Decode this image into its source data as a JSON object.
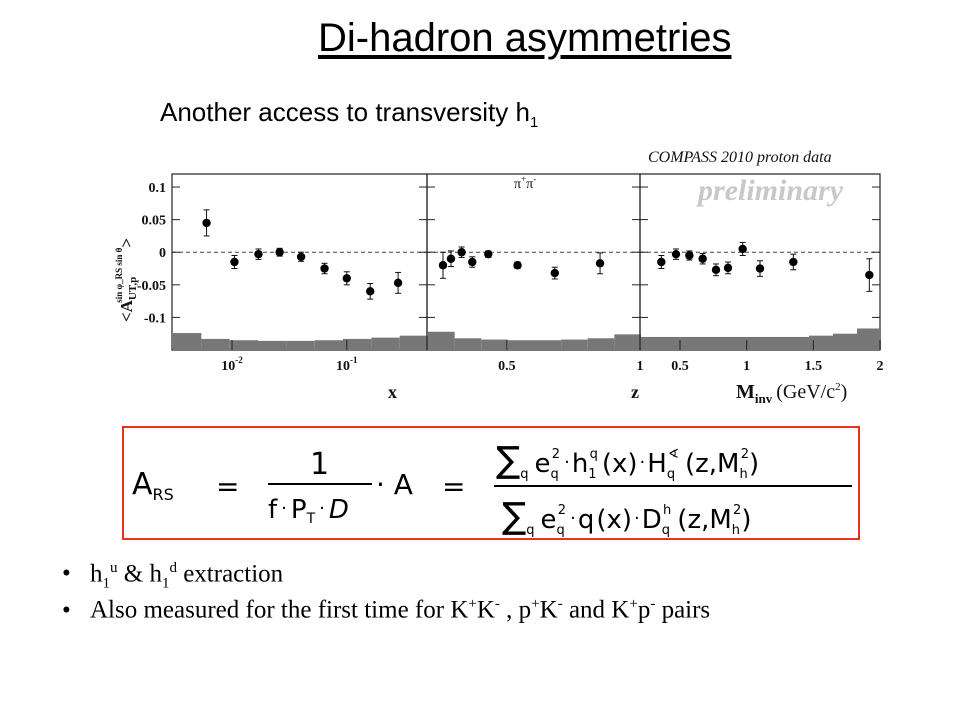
{
  "title": "Di-hadron asymmetries",
  "subtitle_main": "Another access to transversity h",
  "subtitle_sub": "1",
  "figure": {
    "header": "COMPASS 2010 proton data",
    "watermark": "preliminary",
    "ylabel": "<A",
    "ylabel_sub": "UT,p",
    "ylabel_sup": "sin φ_RS sin θ",
    "ylabel_tail": ">",
    "panel2_label_main": "π",
    "panel2_label_sup": "+",
    "panel2_label_main2": "π",
    "panel2_label_sup2": "-",
    "xlabel_1": "x",
    "xlabel_2": "z",
    "xlabel_3_main": "M",
    "xlabel_3_sub": "inv",
    "xlabel_3_units": "(GeV/c",
    "xlabel_3_units_sup": "2",
    "xlabel_3_units_tail": ")"
  },
  "chart_data": [
    {
      "type": "scatter",
      "panel": "x",
      "log_x": true,
      "xlim": [
        0.003,
        0.5
      ],
      "ylim": [
        -0.15,
        0.12
      ],
      "yticks": [
        "0.1",
        "0.05",
        "0",
        "-0.05",
        "-0.1"
      ],
      "ytick_values": [
        0.1,
        0.05,
        0,
        -0.05,
        -0.1
      ],
      "xticks": [
        "10",
        "10"
      ],
      "xtick_sups": [
        "-2",
        "-1"
      ],
      "xtick_values": [
        0.01,
        0.1
      ],
      "points": [
        {
          "x": 0.006,
          "y": 0.045,
          "err": 0.02
        },
        {
          "x": 0.0105,
          "y": -0.015,
          "err": 0.01
        },
        {
          "x": 0.017,
          "y": -0.003,
          "err": 0.008
        },
        {
          "x": 0.026,
          "y": 0.0,
          "err": 0.006
        },
        {
          "x": 0.04,
          "y": -0.007,
          "err": 0.007
        },
        {
          "x": 0.064,
          "y": -0.025,
          "err": 0.008
        },
        {
          "x": 0.1,
          "y": -0.04,
          "err": 0.01
        },
        {
          "x": 0.16,
          "y": -0.06,
          "err": 0.012
        },
        {
          "x": 0.28,
          "y": -0.047,
          "err": 0.016
        }
      ],
      "systematics": [
        -0.124,
        -0.133,
        -0.135,
        -0.136,
        -0.136,
        -0.135,
        -0.133,
        -0.131,
        -0.128
      ]
    },
    {
      "type": "scatter",
      "panel": "z",
      "xlim": [
        0.2,
        1.0
      ],
      "ylim": [
        -0.15,
        0.12
      ],
      "xticks": [
        "0.5",
        "1"
      ],
      "xtick_values": [
        0.5,
        1.0
      ],
      "points": [
        {
          "x": 0.26,
          "y": -0.02,
          "err": 0.02
        },
        {
          "x": 0.29,
          "y": -0.01,
          "err": 0.012
        },
        {
          "x": 0.33,
          "y": 0.0,
          "err": 0.008
        },
        {
          "x": 0.37,
          "y": -0.015,
          "err": 0.008
        },
        {
          "x": 0.43,
          "y": -0.003,
          "err": 0.005
        },
        {
          "x": 0.54,
          "y": -0.02,
          "err": 0.005
        },
        {
          "x": 0.68,
          "y": -0.032,
          "err": 0.009
        },
        {
          "x": 0.85,
          "y": -0.017,
          "err": 0.016
        }
      ],
      "systematics": [
        -0.122,
        -0.132,
        -0.134,
        -0.135,
        -0.135,
        -0.134,
        -0.132,
        -0.126
      ]
    },
    {
      "type": "scatter",
      "panel": "M_inv",
      "xlim": [
        0.2,
        2.0
      ],
      "ylim": [
        -0.15,
        0.12
      ],
      "xticks": [
        "0.5",
        "1",
        "1.5",
        "2"
      ],
      "xtick_values": [
        0.5,
        1.0,
        1.5,
        2.0
      ],
      "points": [
        {
          "x": 0.36,
          "y": -0.015,
          "err": 0.01
        },
        {
          "x": 0.47,
          "y": -0.003,
          "err": 0.008
        },
        {
          "x": 0.57,
          "y": -0.005,
          "err": 0.007
        },
        {
          "x": 0.67,
          "y": -0.01,
          "err": 0.008
        },
        {
          "x": 0.77,
          "y": -0.027,
          "err": 0.009
        },
        {
          "x": 0.86,
          "y": -0.024,
          "err": 0.009
        },
        {
          "x": 0.97,
          "y": 0.005,
          "err": 0.01
        },
        {
          "x": 1.1,
          "y": -0.025,
          "err": 0.012
        },
        {
          "x": 1.35,
          "y": -0.015,
          "err": 0.012
        },
        {
          "x": 1.92,
          "y": -0.035,
          "err": 0.025
        }
      ],
      "systematics": [
        -0.13,
        -0.13,
        -0.13,
        -0.13,
        -0.13,
        -0.13,
        -0.13,
        -0.128,
        -0.125,
        -0.117
      ]
    }
  ],
  "formula": {
    "lhs_A": "A",
    "lhs_sub": "RS",
    "eq1": "=",
    "frac1_num": "1",
    "frac1_den_f": "f",
    "frac1_den_P": "P",
    "frac1_den_P_sub": "T",
    "frac1_den_D": "D",
    "times_A": "· A",
    "eq2": "=",
    "sum": "∑",
    "q": "q",
    "num_e": "e",
    "num_h": "h",
    "num_h_sub": "1",
    "num_x": "(x)",
    "num_H": "H",
    "num_H_sup": "∢",
    "num_args": "(z,M",
    "num_M_sub": "h",
    "num_M_sup": "2",
    "num_close": ")",
    "den_q": "q",
    "den_D": "D",
    "den_D_sup": "h",
    "two": "2",
    "dot": "·"
  },
  "bullets": {
    "b1_h1": "h",
    "b1_sub1": "1",
    "b1_sup1": "u",
    "b1_amp": " & h",
    "b1_sub2": "1",
    "b1_sup2": "d",
    "b1_tail": " extraction",
    "b2_a": "Also measured for the first time for K",
    "b2_s1": "+",
    "b2_b": "K",
    "b2_s2": "-",
    "b2_c": " , p",
    "b2_s3": "+",
    "b2_d": "K",
    "b2_s4": "-",
    "b2_e": " and K",
    "b2_s5": "+",
    "b2_f": "p",
    "b2_s6": "-",
    "b2_g": " pairs",
    "marker": "•"
  }
}
